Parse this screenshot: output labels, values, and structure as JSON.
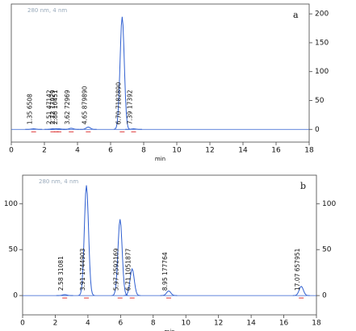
{
  "chart_data": [
    {
      "type": "chromatogram",
      "label": "a",
      "detector": "280 nm, 4 nm",
      "xlabel": "min",
      "xlim": [
        0,
        18
      ],
      "xticks": [
        0,
        2,
        4,
        6,
        8,
        10,
        12,
        14,
        16,
        18
      ],
      "ylim": [
        -22,
        217
      ],
      "y2ticks": [
        0,
        50,
        100,
        150,
        200
      ],
      "color": "#2f5fd0",
      "peaks": [
        {
          "time": 1.35,
          "height": 1,
          "label": "1.35  6508"
        },
        {
          "time": 2.51,
          "height": 1,
          "label": "2.51  47142"
        },
        {
          "time": 2.72,
          "height": 1,
          "label": "2.72  17029"
        },
        {
          "time": 2.88,
          "height": 1,
          "label": "2.88  10451"
        },
        {
          "time": 3.62,
          "height": 2,
          "label": "3.62  72969"
        },
        {
          "time": 4.65,
          "height": 4,
          "label": "4.65  879890"
        },
        {
          "time": 6.7,
          "height": 195,
          "label": "6.70  7182890"
        },
        {
          "time": 7.39,
          "height": 1,
          "label": "7.39  17392"
        }
      ]
    },
    {
      "type": "chromatogram",
      "label": "b",
      "detector": "280 nm, 4 nm",
      "xlabel": "min",
      "xlim": [
        0,
        18
      ],
      "xticks": [
        0,
        2,
        4,
        6,
        8,
        10,
        12,
        14,
        16,
        18
      ],
      "ylim": [
        -21,
        131
      ],
      "yticks": [
        0,
        50,
        100
      ],
      "y2ticks": [
        0,
        50,
        100
      ],
      "color": "#2f5fd0",
      "peaks": [
        {
          "time": 2.58,
          "height": 1,
          "label": "2.58  31081"
        },
        {
          "time": 3.91,
          "height": 120,
          "label": "3.91  1744903"
        },
        {
          "time": 5.97,
          "height": 83,
          "label": "5.97  2592169"
        },
        {
          "time": 6.71,
          "height": 29,
          "label": "6.71  1051877"
        },
        {
          "time": 8.95,
          "height": 5,
          "label": "8.95  177764"
        },
        {
          "time": 17.07,
          "height": 10,
          "label": "17.07  657951"
        }
      ]
    }
  ]
}
